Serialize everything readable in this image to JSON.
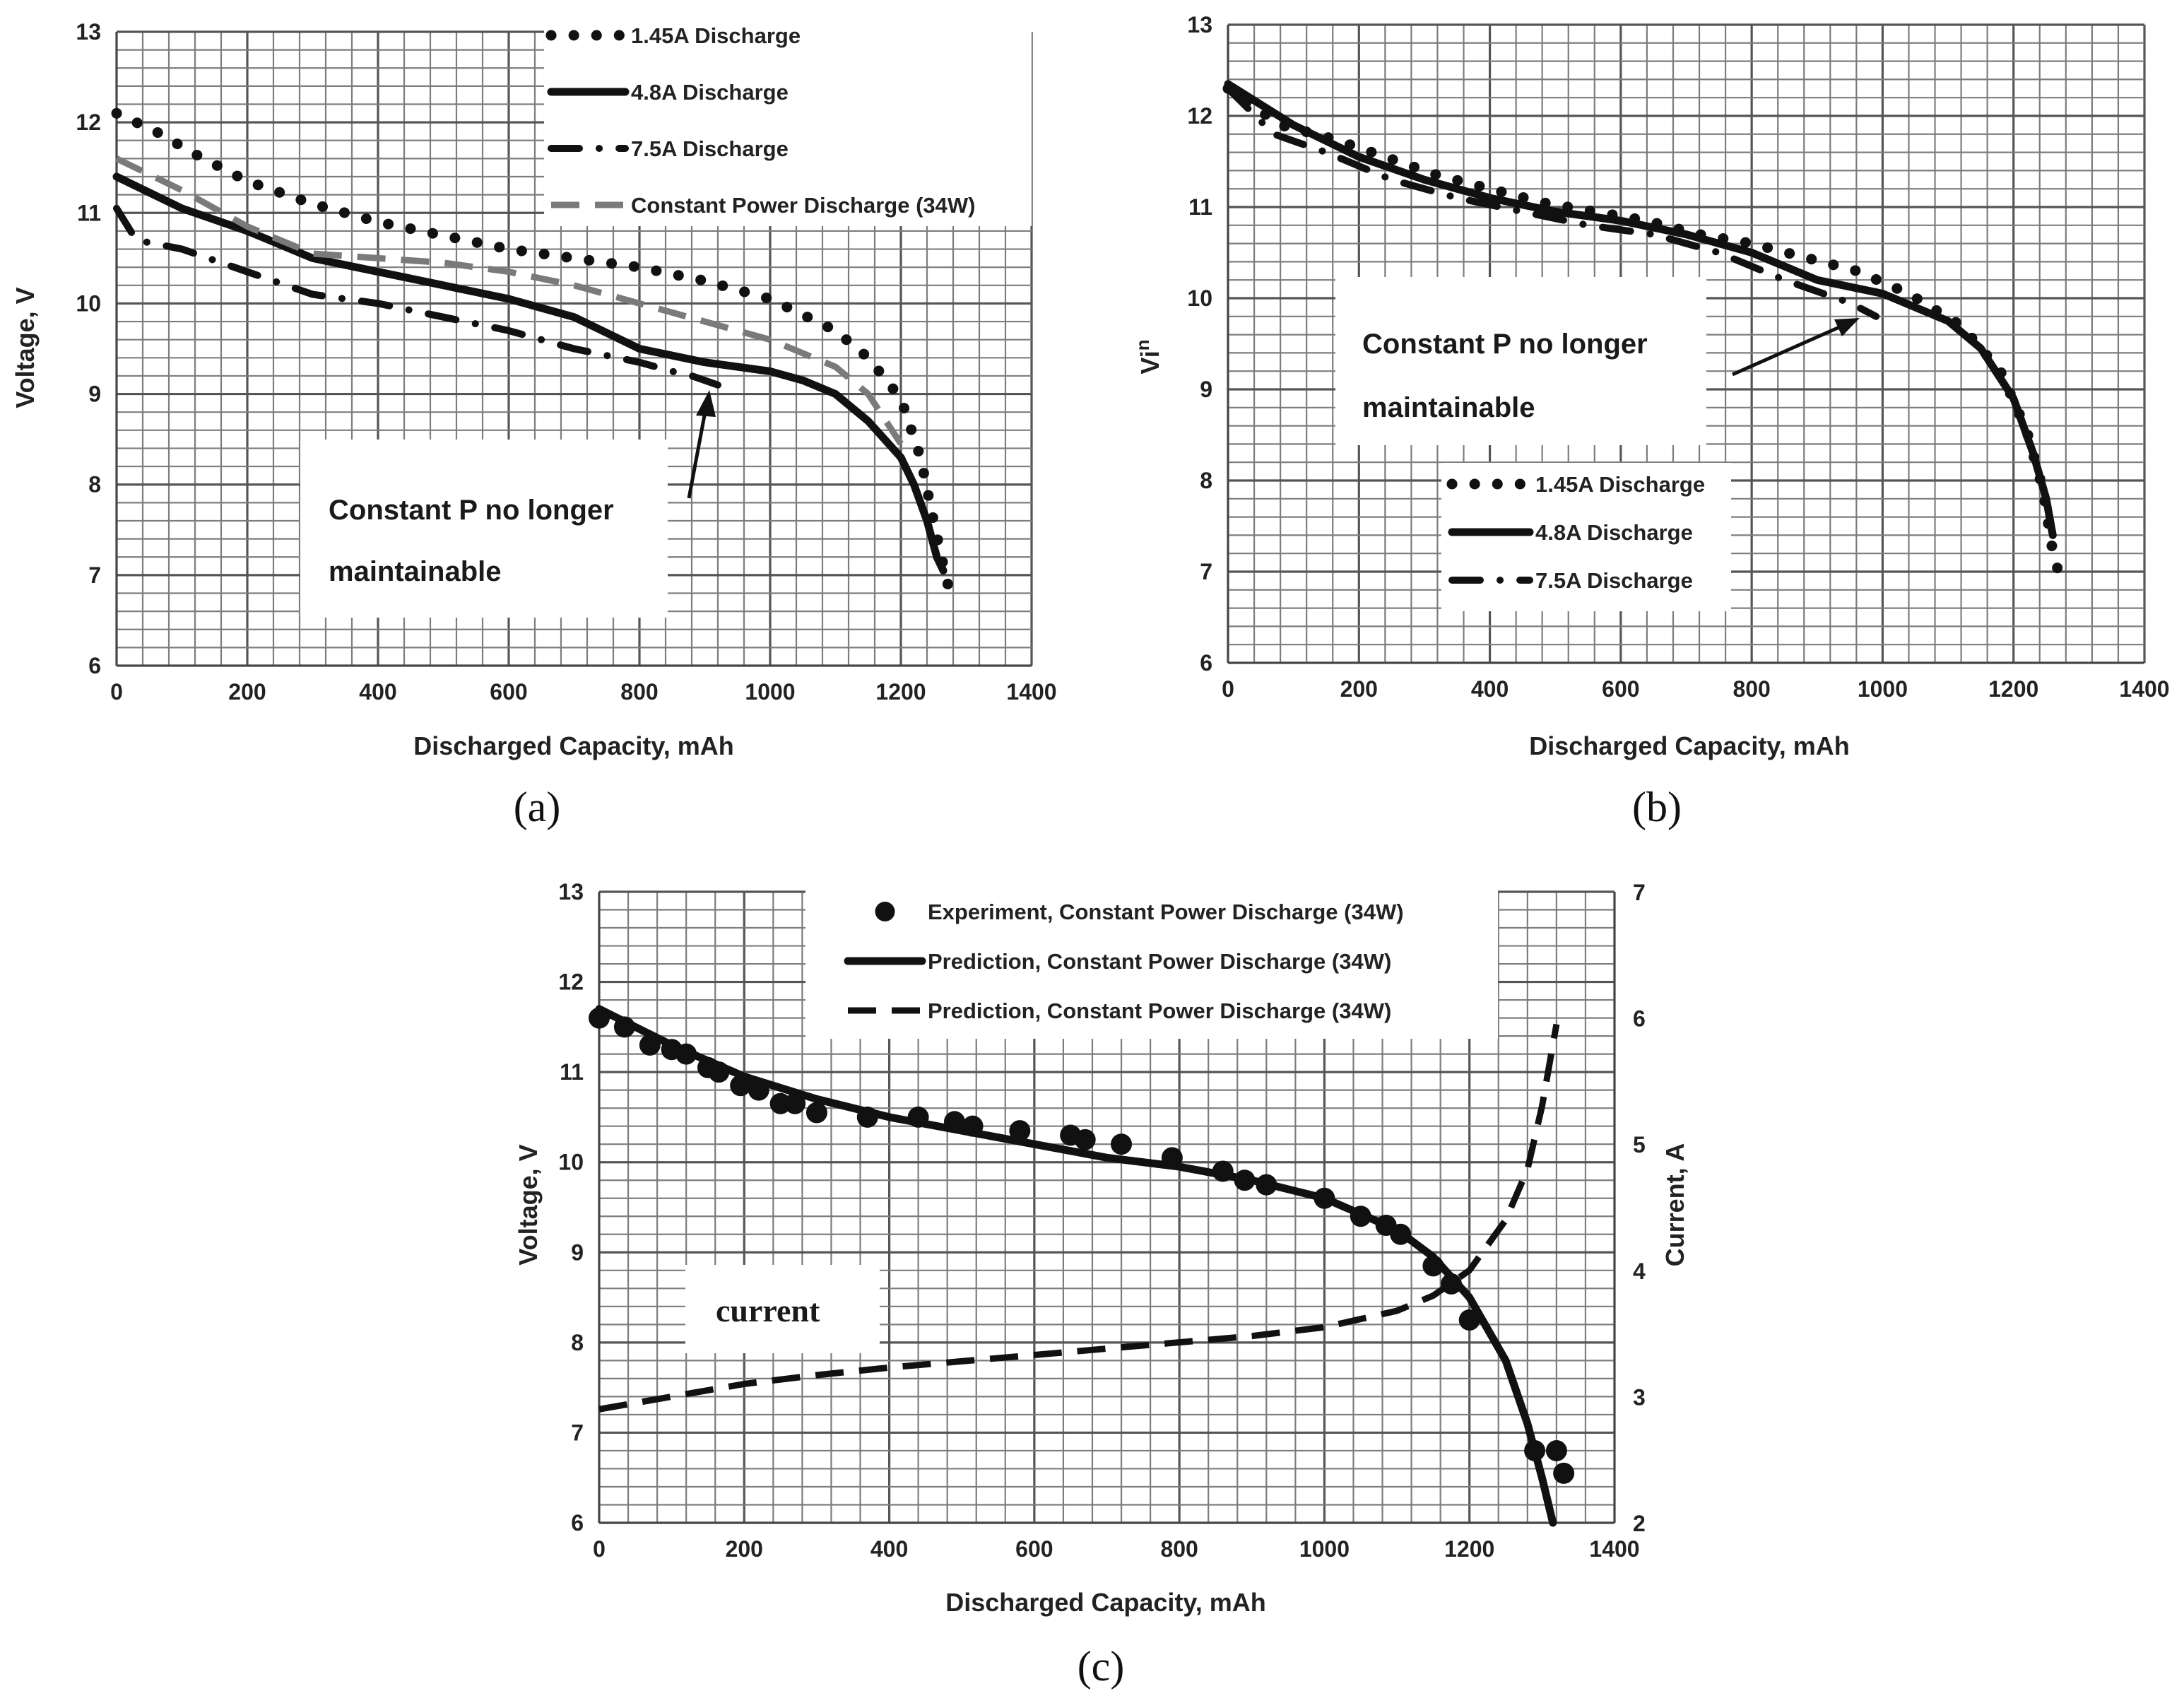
{
  "chart_data": [
    {
      "id": "a",
      "type": "line",
      "panel_label": "(a)",
      "xlabel": "Discharged Capacity, mAh",
      "ylabel": "Voltage, V",
      "xlim": [
        0,
        1400
      ],
      "ylim": [
        6,
        13
      ],
      "xticks": [
        0,
        200,
        400,
        600,
        800,
        1000,
        1200,
        1400
      ],
      "yticks": [
        6,
        7,
        8,
        9,
        10,
        11,
        12,
        13
      ],
      "grid": true,
      "legend_position": "top-right",
      "series": [
        {
          "name": "1.45A Discharge",
          "style": "dotted",
          "color": "#111111",
          "x": [
            0,
            60,
            120,
            200,
            300,
            400,
            500,
            600,
            700,
            800,
            900,
            1000,
            1100,
            1150,
            1200,
            1230,
            1250,
            1262,
            1275
          ],
          "y": [
            12.1,
            11.9,
            11.65,
            11.35,
            11.1,
            10.9,
            10.75,
            10.6,
            10.5,
            10.4,
            10.25,
            10.05,
            9.7,
            9.4,
            8.95,
            8.3,
            7.6,
            7.2,
            6.8
          ]
        },
        {
          "name": "4.8A Discharge",
          "style": "solid",
          "color": "#111111",
          "x": [
            0,
            100,
            200,
            300,
            400,
            500,
            600,
            700,
            800,
            900,
            1000,
            1050,
            1100,
            1150,
            1200,
            1220,
            1240,
            1255,
            1265
          ],
          "y": [
            11.4,
            11.05,
            10.8,
            10.5,
            10.35,
            10.2,
            10.05,
            9.85,
            9.5,
            9.35,
            9.25,
            9.15,
            9.0,
            8.7,
            8.3,
            8.0,
            7.6,
            7.2,
            7.05
          ]
        },
        {
          "name": "7.5A Discharge",
          "style": "dash-dot",
          "color": "#111111",
          "x": [
            0,
            30,
            100,
            200,
            300,
            400,
            500,
            600,
            700,
            800,
            850,
            880,
            920
          ],
          "y": [
            11.05,
            10.7,
            10.6,
            10.35,
            10.1,
            10.0,
            9.85,
            9.7,
            9.5,
            9.35,
            9.25,
            9.2,
            9.1
          ]
        },
        {
          "name": "Constant Power Discharge (34W)",
          "style": "dashed",
          "color": "#7a7a7a",
          "x": [
            0,
            100,
            200,
            300,
            400,
            500,
            600,
            700,
            800,
            900,
            1000,
            1100,
            1150,
            1200
          ],
          "y": [
            11.6,
            11.25,
            10.85,
            10.55,
            10.5,
            10.45,
            10.35,
            10.2,
            10.0,
            9.8,
            9.6,
            9.3,
            9.0,
            8.45
          ]
        }
      ],
      "annotation": {
        "lines": [
          "Constant P no longer",
          "maintainable"
        ],
        "arrow_to": [
          910,
          9.1
        ]
      }
    },
    {
      "id": "b",
      "type": "line",
      "panel_label": "(b)",
      "xlabel": "Discharged Capacity, mAh",
      "ylabel": "Vin",
      "ylabel_parts": [
        "V",
        "i",
        "n"
      ],
      "xlim": [
        0,
        1400
      ],
      "ylim": [
        6,
        13
      ],
      "xticks": [
        0,
        200,
        400,
        600,
        800,
        1000,
        1200,
        1400
      ],
      "yticks": [
        6,
        7,
        8,
        9,
        10,
        11,
        12,
        13
      ],
      "grid": true,
      "legend_position": "center-left",
      "series": [
        {
          "name": "1.45A Discharge",
          "style": "dotted",
          "color": "#111111",
          "x": [
            0,
            80,
            160,
            240,
            320,
            400,
            480,
            560,
            640,
            720,
            800,
            880,
            960,
            1040,
            1120,
            1180,
            1220,
            1245,
            1258,
            1270
          ],
          "y": [
            12.3,
            11.9,
            11.75,
            11.55,
            11.35,
            11.2,
            11.05,
            10.95,
            10.85,
            10.7,
            10.6,
            10.45,
            10.3,
            10.05,
            9.7,
            9.2,
            8.55,
            7.9,
            7.3,
            6.95
          ]
        },
        {
          "name": "4.8A Discharge",
          "style": "solid",
          "color": "#111111",
          "x": [
            0,
            100,
            200,
            300,
            400,
            500,
            600,
            700,
            800,
            900,
            1000,
            1050,
            1100,
            1150,
            1200,
            1230,
            1250,
            1260
          ],
          "y": [
            12.35,
            11.9,
            11.55,
            11.3,
            11.1,
            10.95,
            10.85,
            10.7,
            10.5,
            10.2,
            10.05,
            9.9,
            9.75,
            9.45,
            8.9,
            8.3,
            7.8,
            7.4
          ]
        },
        {
          "name": "7.5A Discharge",
          "style": "dash-dot",
          "color": "#111111",
          "x": [
            0,
            70,
            150,
            250,
            350,
            450,
            550,
            650,
            750,
            850,
            950,
            990
          ],
          "y": [
            12.3,
            11.8,
            11.6,
            11.3,
            11.1,
            10.95,
            10.8,
            10.7,
            10.5,
            10.2,
            9.95,
            9.8
          ]
        }
      ],
      "annotation": {
        "lines": [
          "Constant P no longer",
          "maintainable"
        ],
        "arrow_to": [
          970,
          9.9
        ]
      }
    },
    {
      "id": "c",
      "type": "line",
      "panel_label": "(c)",
      "xlabel": "Discharged Capacity, mAh",
      "ylabel": "Voltage, V",
      "y2label": "Current, A",
      "xlim": [
        0,
        1400
      ],
      "ylim": [
        6,
        13
      ],
      "y2lim": [
        2,
        7
      ],
      "xticks": [
        0,
        200,
        400,
        600,
        800,
        1000,
        1200,
        1400
      ],
      "yticks": [
        6,
        7,
        8,
        9,
        10,
        11,
        12,
        13
      ],
      "y2ticks": [
        2,
        3,
        4,
        5,
        6,
        7
      ],
      "grid": true,
      "legend_position": "top-center",
      "series": [
        {
          "name": "Experiment, Constant Power Discharge (34W)",
          "style": "markers",
          "axis": "left",
          "color": "#111111",
          "x": [
            0,
            35,
            70,
            100,
            120,
            150,
            165,
            195,
            220,
            250,
            270,
            300,
            370,
            440,
            490,
            515,
            580,
            650,
            670,
            720,
            790,
            860,
            890,
            920,
            1000,
            1050,
            1085,
            1105,
            1150,
            1175,
            1200,
            1290,
            1320,
            1330
          ],
          "y": [
            11.6,
            11.5,
            11.3,
            11.25,
            11.2,
            11.05,
            11.0,
            10.85,
            10.8,
            10.65,
            10.65,
            10.55,
            10.5,
            10.5,
            10.45,
            10.4,
            10.35,
            10.3,
            10.25,
            10.2,
            10.05,
            9.9,
            9.8,
            9.75,
            9.6,
            9.4,
            9.3,
            9.2,
            8.85,
            8.65,
            8.25,
            6.8,
            6.8,
            6.55
          ]
        },
        {
          "name": "Prediction, Constant Power Discharge (34W)",
          "style": "solid",
          "axis": "left",
          "color": "#111111",
          "x": [
            0,
            100,
            200,
            300,
            400,
            500,
            600,
            700,
            800,
            900,
            1000,
            1100,
            1150,
            1200,
            1250,
            1280,
            1300,
            1315
          ],
          "y": [
            11.7,
            11.3,
            10.95,
            10.7,
            10.5,
            10.35,
            10.2,
            10.05,
            9.95,
            9.8,
            9.6,
            9.25,
            8.95,
            8.5,
            7.8,
            7.1,
            6.5,
            6.0
          ]
        },
        {
          "name": "Prediction, Constant Power Discharge (34W)",
          "style": "dashed",
          "axis": "right",
          "color": "#111111",
          "x": [
            0,
            100,
            200,
            300,
            400,
            500,
            600,
            700,
            800,
            900,
            1000,
            1100,
            1150,
            1200,
            1250,
            1280,
            1300,
            1320
          ],
          "y": [
            2.9,
            3.0,
            3.1,
            3.17,
            3.23,
            3.28,
            3.33,
            3.38,
            3.43,
            3.48,
            3.55,
            3.68,
            3.8,
            4.0,
            4.4,
            4.8,
            5.3,
            5.95
          ]
        }
      ],
      "annotation": {
        "lines": [
          "current"
        ]
      }
    }
  ]
}
